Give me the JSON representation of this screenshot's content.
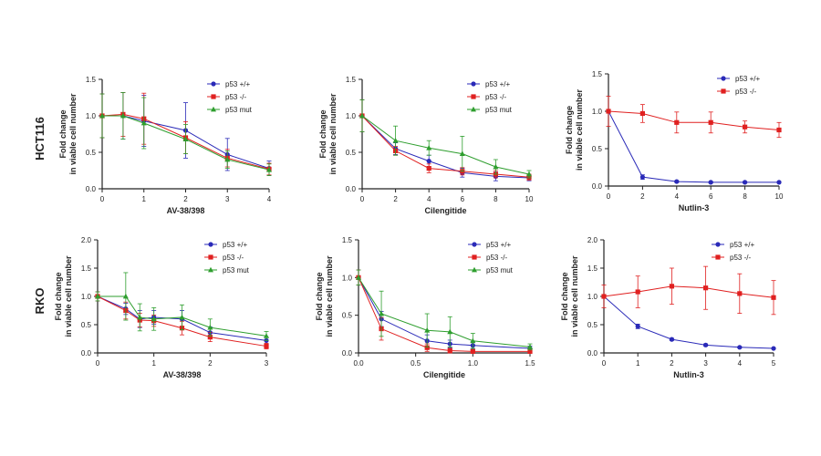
{
  "row_labels": [
    "HCT116",
    "RKO"
  ],
  "series_colors": {
    "wt": "#2a2ab8",
    "ko": "#e02020",
    "mut": "#2e9e2e"
  },
  "chart_data": [
    {
      "type": "line",
      "row": 0,
      "col": 0,
      "xlabel": "AV-38/398",
      "ylabel": [
        "Fold change",
        "in viable cell number"
      ],
      "xlim": [
        0,
        4
      ],
      "ylim": [
        0,
        1.5
      ],
      "xticks": [
        "0",
        "1",
        "2",
        "3",
        "4"
      ],
      "yticks": [
        "0.0",
        "0.5",
        "1.0",
        "1.5"
      ],
      "legend": "top-right",
      "grid": false,
      "series": [
        {
          "name": "p53 +/+",
          "key": "wt",
          "marker": "circle",
          "x": [
            0,
            0.5,
            1,
            2,
            3,
            4
          ],
          "y": [
            1.0,
            1.0,
            0.93,
            0.8,
            0.47,
            0.28
          ],
          "err": [
            0.3,
            0.32,
            0.35,
            0.38,
            0.22,
            0.1
          ]
        },
        {
          "name": "p53 -/-",
          "key": "ko",
          "marker": "square",
          "x": [
            0,
            0.5,
            1,
            2,
            3,
            4
          ],
          "y": [
            1.0,
            1.02,
            0.96,
            0.7,
            0.42,
            0.27
          ],
          "err": [
            0.3,
            0.3,
            0.35,
            0.22,
            0.12,
            0.08
          ]
        },
        {
          "name": "p53 mut",
          "key": "mut",
          "marker": "triangle",
          "x": [
            0,
            0.5,
            1,
            2,
            3,
            4
          ],
          "y": [
            1.0,
            1.0,
            0.9,
            0.68,
            0.4,
            0.26
          ],
          "err": [
            0.3,
            0.32,
            0.35,
            0.2,
            0.12,
            0.08
          ]
        }
      ]
    },
    {
      "type": "line",
      "row": 0,
      "col": 1,
      "xlabel": "Cilengitide",
      "ylabel": [
        "Fold change",
        "in viable cell number"
      ],
      "xlim": [
        0,
        10
      ],
      "ylim": [
        0,
        1.5
      ],
      "xticks": [
        "0",
        "2",
        "4",
        "6",
        "8",
        "10"
      ],
      "yticks": [
        "0.0",
        "0.5",
        "1.0",
        "1.5"
      ],
      "legend": "top-right",
      "grid": false,
      "series": [
        {
          "name": "p53 +/+",
          "key": "wt",
          "marker": "circle",
          "x": [
            0,
            2,
            4,
            6,
            8,
            10
          ],
          "y": [
            1.0,
            0.55,
            0.38,
            0.22,
            0.17,
            0.15
          ],
          "err": [
            0.22,
            0.08,
            0.08,
            0.06,
            0.06,
            0.04
          ]
        },
        {
          "name": "p53 -/-",
          "key": "ko",
          "marker": "square",
          "x": [
            0,
            2,
            4,
            6,
            8,
            10
          ],
          "y": [
            1.0,
            0.52,
            0.28,
            0.24,
            0.2,
            0.16
          ],
          "err": [
            0.22,
            0.06,
            0.06,
            0.05,
            0.05,
            0.04
          ]
        },
        {
          "name": "p53 mut",
          "key": "mut",
          "marker": "triangle",
          "x": [
            0,
            2,
            4,
            6,
            8,
            10
          ],
          "y": [
            1.0,
            0.66,
            0.56,
            0.48,
            0.3,
            0.2
          ],
          "err": [
            0.22,
            0.2,
            0.1,
            0.24,
            0.1,
            0.05
          ]
        }
      ]
    },
    {
      "type": "line",
      "row": 0,
      "col": 2,
      "xlabel": "Nutlin-3",
      "ylabel": [
        "Fold change",
        "in viable cell number"
      ],
      "xlim": [
        0,
        10
      ],
      "ylim": [
        0,
        1.5
      ],
      "xticks": [
        "0",
        "2",
        "4",
        "6",
        "8",
        "10"
      ],
      "yticks": [
        "0.0",
        "0.5",
        "1.0",
        "1.5"
      ],
      "legend": "top-right",
      "grid": false,
      "series": [
        {
          "name": "p53 +/+",
          "key": "wt",
          "marker": "circle",
          "x": [
            0,
            2,
            4,
            6,
            8,
            10
          ],
          "y": [
            1.0,
            0.12,
            0.06,
            0.05,
            0.05,
            0.05
          ],
          "err": [
            0.02,
            0.03,
            0.01,
            0.01,
            0.01,
            0.01
          ]
        },
        {
          "name": "p53 -/-",
          "key": "ko",
          "marker": "square",
          "x": [
            0,
            2,
            4,
            6,
            8,
            10
          ],
          "y": [
            1.0,
            0.97,
            0.85,
            0.85,
            0.79,
            0.75
          ],
          "err": [
            0.2,
            0.12,
            0.14,
            0.14,
            0.08,
            0.1
          ]
        }
      ]
    },
    {
      "type": "line",
      "row": 1,
      "col": 0,
      "xlabel": "AV-38/398",
      "ylabel": [
        "Fold change",
        "in viable cell number"
      ],
      "xlim": [
        0,
        3
      ],
      "ylim": [
        0,
        2.0
      ],
      "xticks": [
        "0",
        "1",
        "2",
        "3"
      ],
      "yticks": [
        "0.0",
        "0.5",
        "1.0",
        "1.5",
        "2.0"
      ],
      "legend": "top-right",
      "grid": false,
      "series": [
        {
          "name": "p53 +/+",
          "key": "wt",
          "marker": "circle",
          "x": [
            0,
            0.5,
            0.75,
            1.0,
            1.5,
            2.0,
            3.0
          ],
          "y": [
            1.0,
            0.78,
            0.6,
            0.63,
            0.6,
            0.36,
            0.22
          ],
          "err": [
            0.08,
            0.1,
            0.15,
            0.12,
            0.15,
            0.1,
            0.06
          ]
        },
        {
          "name": "p53 -/-",
          "key": "ko",
          "marker": "square",
          "x": [
            0,
            0.5,
            0.75,
            1.0,
            1.5,
            2.0,
            3.0
          ],
          "y": [
            1.0,
            0.75,
            0.58,
            0.57,
            0.44,
            0.28,
            0.12
          ],
          "err": [
            0.08,
            0.15,
            0.12,
            0.1,
            0.12,
            0.08,
            0.05
          ]
        },
        {
          "name": "p53 mut",
          "key": "mut",
          "marker": "triangle",
          "x": [
            0,
            0.5,
            0.75,
            1.0,
            1.5,
            2.0,
            3.0
          ],
          "y": [
            1.0,
            1.0,
            0.63,
            0.6,
            0.63,
            0.45,
            0.3
          ],
          "err": [
            0.08,
            0.42,
            0.24,
            0.2,
            0.22,
            0.15,
            0.08
          ]
        }
      ]
    },
    {
      "type": "line",
      "row": 1,
      "col": 1,
      "xlabel": "Cilengitide",
      "ylabel": [
        "Fold change",
        "in viable cell number"
      ],
      "xlim": [
        0,
        1.5
      ],
      "ylim": [
        0,
        1.5
      ],
      "xticks": [
        "0.0",
        "0.5",
        "1.0",
        "1.5"
      ],
      "yticks": [
        "0.0",
        "0.5",
        "1.0",
        "1.5"
      ],
      "legend": "top-right",
      "grid": false,
      "series": [
        {
          "name": "p53 +/+",
          "key": "wt",
          "marker": "circle",
          "x": [
            0,
            0.2,
            0.6,
            0.8,
            1.0,
            1.5
          ],
          "y": [
            1.0,
            0.45,
            0.16,
            0.12,
            0.1,
            0.06
          ],
          "err": [
            0.1,
            0.1,
            0.08,
            0.05,
            0.05,
            0.03
          ]
        },
        {
          "name": "p53 -/-",
          "key": "ko",
          "marker": "square",
          "x": [
            0,
            0.2,
            0.6,
            0.8,
            1.0,
            1.5
          ],
          "y": [
            1.0,
            0.32,
            0.07,
            0.03,
            0.02,
            0.02
          ],
          "err": [
            0.1,
            0.15,
            0.05,
            0.03,
            0.02,
            0.02
          ]
        },
        {
          "name": "p53 mut",
          "key": "mut",
          "marker": "triangle",
          "x": [
            0,
            0.2,
            0.6,
            0.8,
            1.0,
            1.5
          ],
          "y": [
            1.0,
            0.52,
            0.3,
            0.28,
            0.16,
            0.08
          ],
          "err": [
            0.1,
            0.3,
            0.22,
            0.2,
            0.1,
            0.04
          ]
        }
      ]
    },
    {
      "type": "line",
      "row": 1,
      "col": 2,
      "xlabel": "Nutlin-3",
      "ylabel": [
        "Fold change",
        "in viable cell number"
      ],
      "xlim": [
        0,
        5
      ],
      "ylim": [
        0,
        2.0
      ],
      "xticks": [
        "0",
        "1",
        "2",
        "3",
        "4",
        "5"
      ],
      "yticks": [
        "0.0",
        "0.5",
        "1.0",
        "1.5",
        "2.0"
      ],
      "legend": "top-right",
      "grid": false,
      "series": [
        {
          "name": "p53 +/+",
          "key": "wt",
          "marker": "circle",
          "x": [
            0,
            1,
            2,
            3,
            4,
            5
          ],
          "y": [
            1.0,
            0.47,
            0.24,
            0.14,
            0.1,
            0.08
          ],
          "err": [
            0.02,
            0.04,
            0.02,
            0.02,
            0.01,
            0.01
          ]
        },
        {
          "name": "p53 -/-",
          "key": "ko",
          "marker": "square",
          "x": [
            0,
            1,
            2,
            3,
            4,
            5
          ],
          "y": [
            1.0,
            1.08,
            1.18,
            1.15,
            1.05,
            0.98
          ],
          "err": [
            0.2,
            0.28,
            0.32,
            0.38,
            0.35,
            0.3
          ]
        }
      ]
    }
  ]
}
